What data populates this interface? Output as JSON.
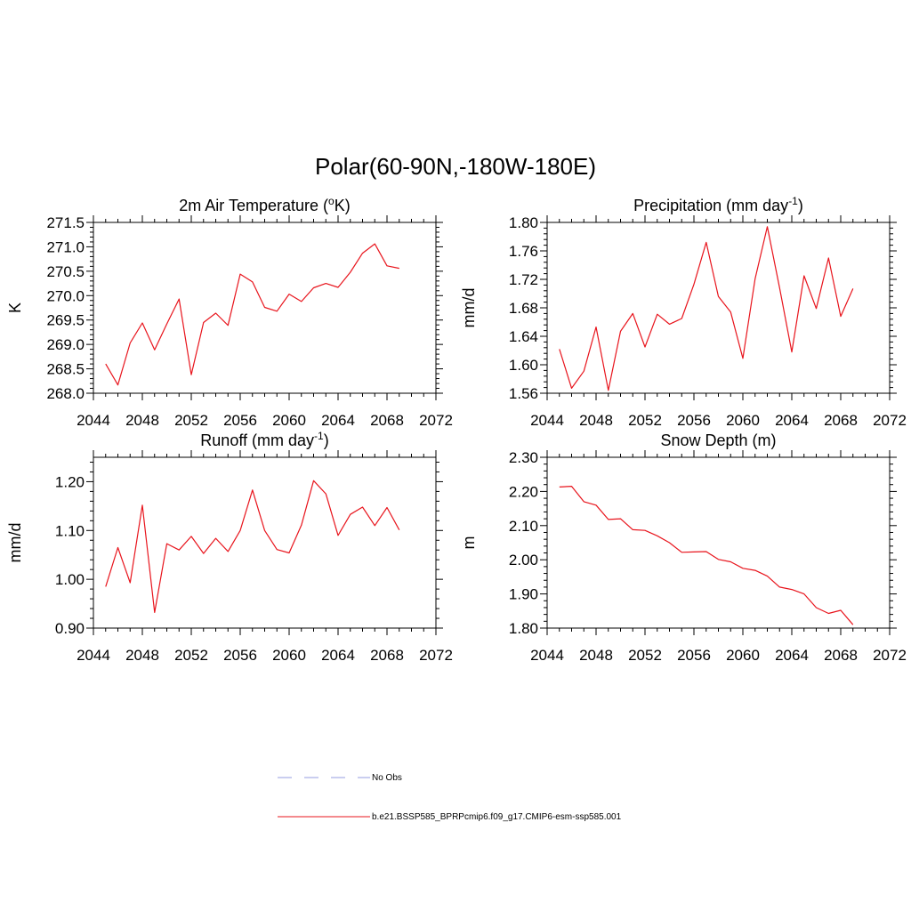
{
  "title": "Polar(60-90N,-180W-180E)",
  "line_color": "#e8141c",
  "obs_color": "#aab0e8",
  "legend": {
    "obs_label": "No Obs",
    "model_label": "b.e21.BSSP585_BPRPcmip6.f09_g17.CMIP6-esm-ssp585.001"
  },
  "chart_data": [
    {
      "type": "line",
      "title_main": "2m Air Temperature (",
      "title_sup": "o",
      "title_end": "K)",
      "ylabel": "K",
      "xlim": [
        2044,
        2072
      ],
      "ylim": [
        268.0,
        271.5
      ],
      "xticks": [
        "2044",
        "2048",
        "2052",
        "2056",
        "2060",
        "2064",
        "2068",
        "2072"
      ],
      "yticks": [
        "268.0",
        "268.5",
        "269.0",
        "269.5",
        "270.0",
        "270.5",
        "271.0",
        "271.5"
      ],
      "series": [
        {
          "x": [
            2045,
            2046,
            2047,
            2048,
            2049,
            2050,
            2051,
            2052,
            2053,
            2054,
            2055,
            2056,
            2057,
            2058,
            2059,
            2060,
            2061,
            2062,
            2063,
            2064,
            2065,
            2066,
            2067,
            2068,
            2069
          ],
          "y": [
            268.6,
            268.17,
            269.03,
            269.44,
            268.89,
            269.42,
            269.93,
            268.38,
            269.45,
            269.64,
            269.39,
            270.44,
            270.28,
            269.76,
            269.68,
            270.03,
            269.88,
            270.16,
            270.25,
            270.17,
            270.48,
            270.87,
            271.06,
            270.61,
            270.56
          ]
        }
      ]
    },
    {
      "type": "line",
      "title_main": "Precipitation (mm day",
      "title_sup": "-1",
      "title_end": ")",
      "ylabel": "mm/d",
      "xlim": [
        2044,
        2072
      ],
      "ylim": [
        1.56,
        1.8
      ],
      "xticks": [
        "2044",
        "2048",
        "2052",
        "2056",
        "2060",
        "2064",
        "2068",
        "2072"
      ],
      "yticks": [
        "1.56",
        "1.60",
        "1.64",
        "1.68",
        "1.72",
        "1.76",
        "1.80"
      ],
      "series": [
        {
          "x": [
            2045,
            2046,
            2047,
            2048,
            2049,
            2050,
            2051,
            2052,
            2053,
            2054,
            2055,
            2056,
            2057,
            2058,
            2059,
            2060,
            2061,
            2062,
            2063,
            2064,
            2065,
            2066,
            2067,
            2068,
            2069
          ],
          "y": [
            1.622,
            1.567,
            1.591,
            1.653,
            1.564,
            1.647,
            1.672,
            1.625,
            1.671,
            1.657,
            1.665,
            1.713,
            1.772,
            1.696,
            1.674,
            1.609,
            1.721,
            1.794,
            1.708,
            1.618,
            1.725,
            1.679,
            1.75,
            1.668,
            1.707
          ]
        }
      ]
    },
    {
      "type": "line",
      "title_main": "Runoff (mm day",
      "title_sup": "-1",
      "title_end": ")",
      "ylabel": "mm/d",
      "xlim": [
        2044,
        2072
      ],
      "ylim": [
        0.9,
        1.25
      ],
      "xticks": [
        "2044",
        "2048",
        "2052",
        "2056",
        "2060",
        "2064",
        "2068",
        "2072"
      ],
      "yticks": [
        "0.90",
        "1.00",
        "1.10",
        "1.20"
      ],
      "series": [
        {
          "x": [
            2045,
            2046,
            2047,
            2048,
            2049,
            2050,
            2051,
            2052,
            2053,
            2054,
            2055,
            2056,
            2057,
            2058,
            2059,
            2060,
            2061,
            2062,
            2063,
            2064,
            2065,
            2066,
            2067,
            2068,
            2069
          ],
          "y": [
            0.985,
            1.065,
            0.993,
            1.152,
            0.932,
            1.073,
            1.06,
            1.088,
            1.053,
            1.084,
            1.057,
            1.1,
            1.183,
            1.1,
            1.061,
            1.054,
            1.111,
            1.202,
            1.175,
            1.09,
            1.133,
            1.148,
            1.11,
            1.147,
            1.101
          ]
        }
      ]
    },
    {
      "type": "line",
      "title_main": "Snow Depth (m)",
      "title_sup": "",
      "title_end": "",
      "ylabel": "m",
      "xlim": [
        2044,
        2072
      ],
      "ylim": [
        1.8,
        2.3
      ],
      "xticks": [
        "2044",
        "2048",
        "2052",
        "2056",
        "2060",
        "2064",
        "2068",
        "2072"
      ],
      "yticks": [
        "1.80",
        "1.90",
        "2.00",
        "2.10",
        "2.20",
        "2.30"
      ],
      "series": [
        {
          "x": [
            2045,
            2046,
            2047,
            2048,
            2049,
            2050,
            2051,
            2052,
            2053,
            2054,
            2055,
            2056,
            2057,
            2058,
            2059,
            2060,
            2061,
            2062,
            2063,
            2064,
            2065,
            2066,
            2067,
            2068,
            2069
          ],
          "y": [
            2.213,
            2.215,
            2.17,
            2.16,
            2.118,
            2.12,
            2.088,
            2.086,
            2.07,
            2.05,
            2.022,
            2.023,
            2.024,
            2.001,
            1.994,
            1.975,
            1.969,
            1.952,
            1.92,
            1.913,
            1.9,
            1.86,
            1.843,
            1.852,
            1.81
          ]
        }
      ]
    }
  ]
}
